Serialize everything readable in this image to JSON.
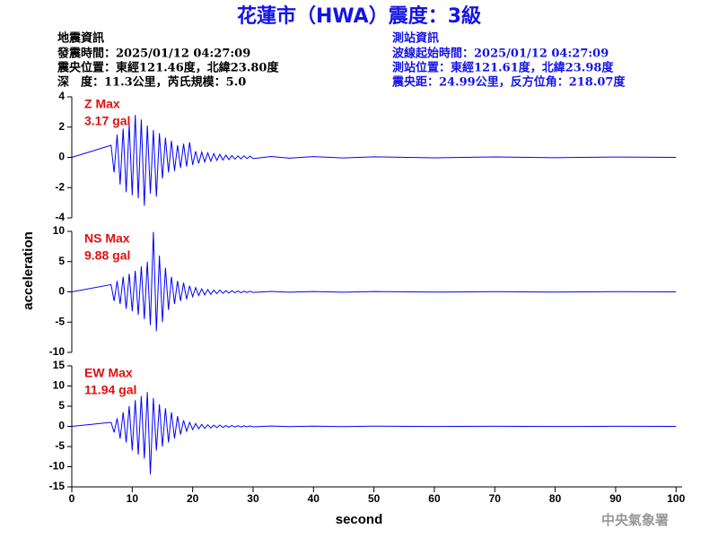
{
  "header": {
    "title": "花蓮市（HWA）震度：3級",
    "left": [
      "地震資訊",
      "發震時間：2025/01/12 04:27:09",
      "震央位置：東經121.46度，北緯23.80度",
      "深　度：11.3公里，芮氏規模：5.0"
    ],
    "right": [
      "測站資訊",
      "波線起始時間：2025/01/12 04:27:09",
      "測站位置：東經121.61度，北緯23.98度",
      "震央距：24.99公里，反方位角：218.07度"
    ],
    "footer": "中央氣象署"
  },
  "chart_data": [
    {
      "type": "line",
      "annotations": [
        "Z Max",
        "3.17 gal"
      ],
      "xlim": [
        0,
        101
      ],
      "ylim": [
        -4,
        4
      ],
      "yticks": [
        -4,
        -2,
        0,
        2,
        4
      ],
      "x": [
        0,
        6.5,
        7,
        7.5,
        8,
        8.5,
        9,
        9.5,
        10,
        10.5,
        11,
        11.5,
        12,
        12.5,
        13,
        13.5,
        14,
        14.5,
        15,
        15.5,
        16,
        16.5,
        17,
        17.5,
        18,
        18.5,
        19,
        19.5,
        20,
        20.5,
        21,
        21.5,
        22,
        22.5,
        23,
        23.5,
        24,
        24.5,
        25,
        25.5,
        26,
        26.5,
        27,
        27.5,
        28,
        28.5,
        29,
        29.5,
        30,
        33,
        36,
        40,
        45,
        50,
        60,
        70,
        80,
        90,
        100
      ],
      "series": [
        {
          "color": "#0000ff",
          "values": [
            0,
            0.8,
            -1.0,
            1.5,
            -1.8,
            1.9,
            -2.3,
            2.2,
            -2.5,
            2.8,
            -2.7,
            2.5,
            -3.2,
            2.1,
            -2.4,
            1.8,
            -2.6,
            1.6,
            -1.4,
            1.3,
            -1.0,
            1.1,
            -0.9,
            0.8,
            -0.7,
            0.9,
            -0.6,
            1.0,
            -0.5,
            0.4,
            -0.4,
            0.35,
            -0.3,
            0.3,
            -0.25,
            0.25,
            -0.2,
            0.2,
            -0.18,
            0.15,
            -0.15,
            0.12,
            -0.12,
            0.1,
            -0.1,
            0.1,
            -0.08,
            0.08,
            -0.08,
            0.06,
            -0.05,
            0.05,
            -0.04,
            0.04,
            -0.03,
            0.03,
            -0.02,
            0.02,
            0
          ]
        }
      ]
    },
    {
      "type": "line",
      "annotations": [
        "NS Max",
        "9.88 gal"
      ],
      "ylabel": "acceleration",
      "xlim": [
        0,
        101
      ],
      "ylim": [
        -10,
        10
      ],
      "yticks": [
        -10,
        -5,
        0,
        5,
        10
      ],
      "x": [
        0,
        6.5,
        7,
        7.5,
        8,
        8.5,
        9,
        9.5,
        10,
        10.5,
        11,
        11.5,
        12,
        12.5,
        13,
        13.5,
        14,
        14.5,
        15,
        15.5,
        16,
        16.5,
        17,
        17.5,
        18,
        18.5,
        19,
        19.5,
        20,
        20.5,
        21,
        21.5,
        22,
        22.5,
        23,
        23.5,
        24,
        24.5,
        25,
        25.5,
        26,
        26.5,
        27,
        27.5,
        28,
        28.5,
        29,
        29.5,
        30,
        33,
        36,
        40,
        45,
        50,
        60,
        70,
        80,
        90,
        100
      ],
      "series": [
        {
          "color": "#0000ff",
          "values": [
            0,
            1.2,
            -1.5,
            1.8,
            -2.0,
            2.5,
            -2.8,
            3.0,
            -3.2,
            3.5,
            -3.8,
            4.2,
            -4.5,
            5.0,
            -5.5,
            9.88,
            -6.5,
            6.0,
            -5.0,
            4.0,
            -3.0,
            2.5,
            -2.0,
            1.8,
            -1.5,
            1.5,
            -1.2,
            1.0,
            -0.8,
            0.7,
            -0.6,
            0.5,
            -0.5,
            0.4,
            -0.4,
            0.3,
            -0.3,
            0.3,
            -0.25,
            0.2,
            -0.2,
            0.2,
            -0.15,
            0.15,
            -0.15,
            0.12,
            -0.1,
            0.1,
            -0.1,
            0.08,
            -0.06,
            0.06,
            -0.05,
            0.05,
            -0.04,
            0.04,
            -0.03,
            0.03,
            0
          ]
        }
      ]
    },
    {
      "type": "line",
      "annotations": [
        "EW Max",
        "11.94 gal"
      ],
      "xlabel": "second",
      "xlim": [
        0,
        101
      ],
      "xticks": [
        0,
        10,
        20,
        30,
        40,
        50,
        60,
        70,
        80,
        90,
        100
      ],
      "ylim": [
        -15,
        15
      ],
      "yticks": [
        -15,
        -10,
        -5,
        0,
        5,
        10,
        15
      ],
      "x": [
        0,
        6.5,
        7,
        7.5,
        8,
        8.5,
        9,
        9.5,
        10,
        10.5,
        11,
        11.5,
        12,
        12.5,
        13,
        13.5,
        14,
        14.5,
        15,
        15.5,
        16,
        16.5,
        17,
        17.5,
        18,
        18.5,
        19,
        19.5,
        20,
        20.5,
        21,
        21.5,
        22,
        22.5,
        23,
        23.5,
        24,
        24.5,
        25,
        25.5,
        26,
        26.5,
        27,
        27.5,
        28,
        28.5,
        29,
        29.5,
        30,
        33,
        36,
        40,
        45,
        50,
        60,
        70,
        80,
        90,
        100
      ],
      "series": [
        {
          "color": "#0000ff",
          "values": [
            0,
            1.0,
            -1.5,
            2.0,
            -3.0,
            3.5,
            -4.0,
            5.0,
            -6.0,
            6.5,
            -7.0,
            7.5,
            -8.0,
            8.5,
            -11.9,
            7.0,
            -6.0,
            5.5,
            -5.0,
            4.5,
            -4.0,
            3.5,
            -3.0,
            2.5,
            -2.0,
            1.5,
            -1.2,
            1.0,
            -0.8,
            0.7,
            -0.6,
            0.5,
            -0.5,
            0.4,
            -0.4,
            0.3,
            -0.3,
            0.3,
            -0.25,
            0.2,
            -0.2,
            0.2,
            -0.15,
            0.15,
            -0.15,
            0.12,
            -0.1,
            0.1,
            -0.1,
            0.08,
            -0.06,
            0.06,
            -0.05,
            0.05,
            -0.04,
            0.04,
            -0.03,
            0.03,
            0
          ]
        }
      ]
    }
  ]
}
